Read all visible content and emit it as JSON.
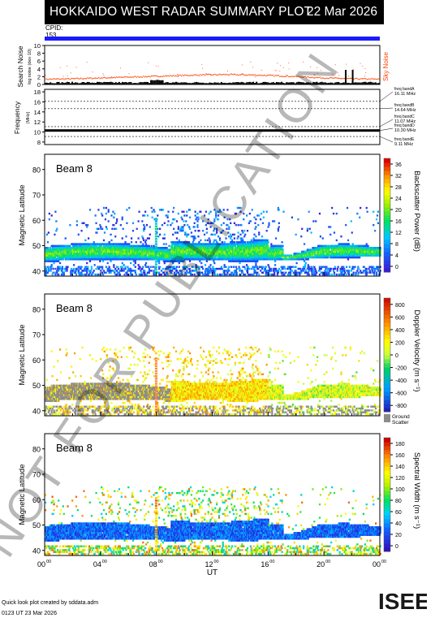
{
  "header": {
    "title": "HOKKAIDO WEST RADAR SUMMARY PLOT",
    "date": "22 Mar 2026",
    "cpid_label": "CPID:",
    "cpid_value": "153"
  },
  "noise_panel": {
    "ylabel_main": "Search Noise",
    "ylabel_sub": "log noise (dex·10)",
    "yticks": [
      "0",
      "2",
      "4",
      "6",
      "8",
      "10"
    ],
    "right_label": "Sky Noise",
    "right_color": "#ff4400"
  },
  "freq_panel": {
    "ylabel_main": "Frequency",
    "ylabel_sub": "(MHz)",
    "yticks": [
      "8",
      "10",
      "12",
      "14",
      "16",
      "18"
    ],
    "bands": [
      {
        "name": "freq bandA",
        "value": "16.11 MHz"
      },
      {
        "name": "freq bandB",
        "value": "14.64 MHz"
      },
      {
        "name": "freq bandC",
        "value": "11.07 MHz"
      },
      {
        "name": "freq bandD",
        "value": "10.30 MHz"
      },
      {
        "name": "freq bandE",
        "value": "9.11 MHz"
      }
    ]
  },
  "panels": [
    {
      "beam_label": "Beam  8",
      "ylabel": "Magnetic Latitude",
      "yticks": [
        "40",
        "50",
        "60",
        "70",
        "80"
      ],
      "cbar_label": "Backscatter Power (dB)",
      "cbar_ticks": [
        "0",
        "4",
        "8",
        "12",
        "16",
        "20",
        "24",
        "28",
        "32",
        "36"
      ]
    },
    {
      "beam_label": "Beam  8",
      "ylabel": "Magnetic Latitude",
      "yticks": [
        "40",
        "50",
        "60",
        "70",
        "80"
      ],
      "cbar_label": "Doppler Velocity (m s⁻¹)",
      "cbar_ticks": [
        "-800",
        "-600",
        "-400",
        "-200",
        "0",
        "200",
        "400",
        "600",
        "800"
      ],
      "ground_label": "Ground",
      "ground_label2": "Scatter"
    },
    {
      "beam_label": "Beam  8",
      "ylabel": "Magnetic Latitude",
      "yticks": [
        "40",
        "50",
        "60",
        "70",
        "80"
      ],
      "cbar_label": "Spectral Width (m s⁻¹)",
      "cbar_ticks": [
        "0",
        "20",
        "40",
        "60",
        "80",
        "100",
        "120",
        "140",
        "160",
        "180"
      ]
    }
  ],
  "xaxis": {
    "ticks": [
      "00",
      "04",
      "08",
      "12",
      "16",
      "20",
      "00"
    ],
    "tick_sup": "00",
    "label": "UT"
  },
  "footer": {
    "line1": "Quick look plot created by sddata.adm",
    "line2": "0123 UT 23 Mar 2026"
  },
  "logo": {
    "letters": "ISEE"
  },
  "watermark": "NOT FOR PUBLICATION",
  "chart_data": [
    {
      "type": "line",
      "title": "Search Noise",
      "ylim": [
        0,
        10
      ],
      "series": [
        {
          "name": "Sky Noise",
          "values": [
            1.3,
            1.4,
            1.6,
            1.8,
            2.0,
            2.2,
            2.4,
            2.5,
            2.4,
            2.2,
            1.9,
            1.6,
            1.4,
            1.3
          ]
        }
      ]
    },
    {
      "type": "line",
      "title": "Frequency",
      "ylabel": "Frequency (MHz)",
      "ylim": [
        8,
        18
      ],
      "series": [
        {
          "name": "operating",
          "values": [
            10.3,
            10.3,
            10.3,
            10.3,
            10.3,
            10.3,
            10.3
          ]
        }
      ]
    },
    {
      "type": "heatmap",
      "title": "Backscatter Power (dB)",
      "xlim": [
        0,
        24
      ],
      "ylim": [
        40,
        85
      ],
      "crange": [
        0,
        36
      ]
    },
    {
      "type": "heatmap",
      "title": "Doppler Velocity",
      "xlim": [
        0,
        24
      ],
      "ylim": [
        40,
        85
      ],
      "crange": [
        -800,
        800
      ]
    },
    {
      "type": "heatmap",
      "title": "Spectral Width",
      "xlim": [
        0,
        24
      ],
      "ylim": [
        40,
        85
      ],
      "crange": [
        0,
        180
      ]
    }
  ]
}
